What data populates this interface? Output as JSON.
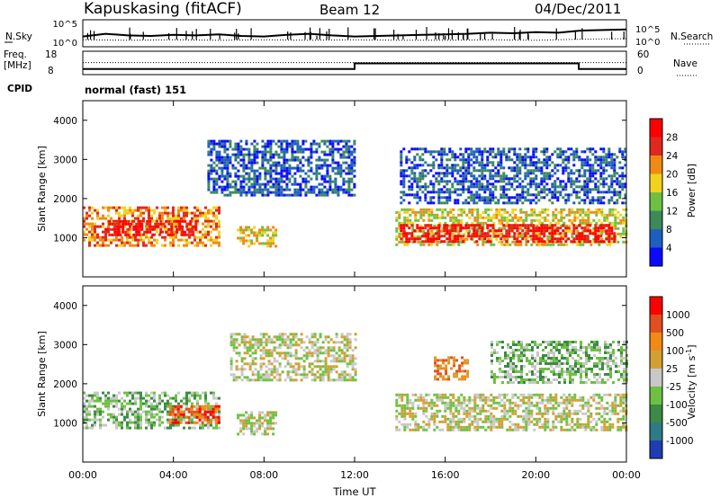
{
  "header": {
    "station": "Kapuskasing (fitACF)",
    "beam": "Beam 12",
    "date": "04/Dec/2011"
  },
  "chart_data": [
    {
      "type": "line",
      "panel": "noise",
      "left_label": "N.Sky",
      "right_label": "N.Search",
      "yticks_left": [
        "10^5",
        "10^0"
      ],
      "yticks_right": [
        "10^5",
        "10^0"
      ],
      "ylim": [
        0,
        5
      ],
      "scale": "log",
      "series": [
        {
          "style": "solid",
          "x": [
            0,
            1,
            2,
            3,
            4,
            5,
            6,
            7,
            8,
            9,
            10,
            11,
            12,
            13,
            14,
            15,
            16,
            17,
            18,
            19,
            20,
            21,
            22,
            23,
            24
          ],
          "values": [
            1.9,
            2.4,
            2.1,
            2.0,
            2.2,
            2.1,
            2.3,
            2.0,
            1.9,
            2.2,
            2.4,
            2.1,
            1.9,
            2.0,
            2.1,
            2.2,
            2.3,
            2.4,
            2.6,
            2.5,
            2.7,
            2.6,
            3.0,
            3.1,
            3.2
          ]
        },
        {
          "style": "dotted",
          "x": [
            0,
            2,
            4,
            6,
            8,
            10,
            12,
            14,
            16,
            18,
            20,
            22,
            24
          ],
          "values": [
            1.3,
            1.2,
            1.3,
            1.2,
            1.3,
            1.2,
            1.3,
            1.2,
            1.2,
            1.3,
            1.2,
            1.4,
            1.5
          ]
        }
      ]
    },
    {
      "type": "line",
      "panel": "frequency",
      "left_label": "Freq.",
      "left_unit": "[MHz]",
      "right_label": "Nave",
      "yticks_left": [
        "18",
        "8"
      ],
      "yticks_right": [
        "60",
        "0"
      ],
      "series": [
        {
          "style": "solid",
          "x": [
            0,
            12,
            12,
            21.9,
            21.9,
            24
          ],
          "values": [
            10.2,
            10.2,
            12.8,
            12.8,
            10.2,
            10.2
          ]
        },
        {
          "style": "dotted",
          "x": [
            0,
            24
          ],
          "values": [
            31,
            31
          ]
        }
      ]
    },
    {
      "type": "text",
      "panel": "cpid",
      "label": "CPID",
      "value": "normal (fast) 151"
    },
    {
      "type": "heatmap",
      "panel": "power",
      "xlim": [
        0,
        24
      ],
      "ylim": [
        0,
        4500
      ],
      "xticks": [
        "00:00",
        "04:00",
        "08:00",
        "12:00",
        "16:00",
        "20:00",
        "00:00"
      ],
      "ylabel": "Slant Range [km]",
      "yticks": [
        "1000",
        "2000",
        "3000",
        "4000"
      ],
      "colorbar_label": "Power [dB]",
      "colorbar_ticks": [
        "4",
        "8",
        "12",
        "16",
        "20",
        "24",
        "28"
      ],
      "colors": [
        "#0a0aff",
        "#1e5fbe",
        "#3c8a5a",
        "#6ec043",
        "#f2d21e",
        "#f08a14",
        "#e0281e",
        "#ff0000"
      ],
      "regions": [
        {
          "t0": 0,
          "t1": 6,
          "r0": 800,
          "r1": 1800,
          "level": 5
        },
        {
          "t0": 1,
          "t1": 5,
          "r0": 1050,
          "r1": 1450,
          "level": 7
        },
        {
          "t0": 6.8,
          "t1": 8.5,
          "r0": 800,
          "r1": 1300,
          "level": 4
        },
        {
          "t0": 5.5,
          "t1": 12,
          "r0": 2100,
          "r1": 3500,
          "level": 1
        },
        {
          "t0": 13.8,
          "t1": 24,
          "r0": 800,
          "r1": 1750,
          "level": 4
        },
        {
          "t0": 14,
          "t1": 23.5,
          "r0": 900,
          "r1": 1350,
          "level": 7
        },
        {
          "t0": 14,
          "t1": 24,
          "r0": 1900,
          "r1": 3300,
          "level": 1
        }
      ]
    },
    {
      "type": "heatmap",
      "panel": "velocity",
      "xlim": [
        0,
        24
      ],
      "ylim": [
        0,
        4500
      ],
      "xlabel": "Time UT",
      "xticks": [
        "00:00",
        "04:00",
        "08:00",
        "12:00",
        "16:00",
        "20:00",
        "00:00"
      ],
      "ylabel": "Slant Range [km]",
      "yticks": [
        "1000",
        "2000",
        "3000",
        "4000"
      ],
      "colorbar_label": "Velocity [m s",
      "colorbar_exponent": "-1",
      "colorbar_ticks": [
        "1000",
        "500",
        "100",
        "25",
        "-25",
        "-100",
        "-500",
        "-1000"
      ],
      "colors": [
        "#1e3cb4",
        "#2f7a87",
        "#3c8a46",
        "#6ec043",
        "#c8c8c8",
        "#d2a032",
        "#f08a14",
        "#e0501e",
        "#ff0000"
      ],
      "regions": [
        {
          "t0": 0,
          "t1": 6,
          "r0": 900,
          "r1": 1800,
          "level": 3
        },
        {
          "t0": 3.8,
          "t1": 6,
          "r0": 1000,
          "r1": 1450,
          "level": 7
        },
        {
          "t0": 6.5,
          "t1": 12,
          "r0": 2100,
          "r1": 3300,
          "level": 4
        },
        {
          "t0": 6.8,
          "t1": 8.5,
          "r0": 700,
          "r1": 1300,
          "level": 4
        },
        {
          "t0": 13.8,
          "t1": 24,
          "r0": 800,
          "r1": 1750,
          "level": 4
        },
        {
          "t0": 15.5,
          "t1": 17,
          "r0": 2100,
          "r1": 2700,
          "level": 6
        },
        {
          "t0": 18,
          "t1": 24,
          "r0": 2000,
          "r1": 3100,
          "level": 3
        }
      ]
    }
  ]
}
